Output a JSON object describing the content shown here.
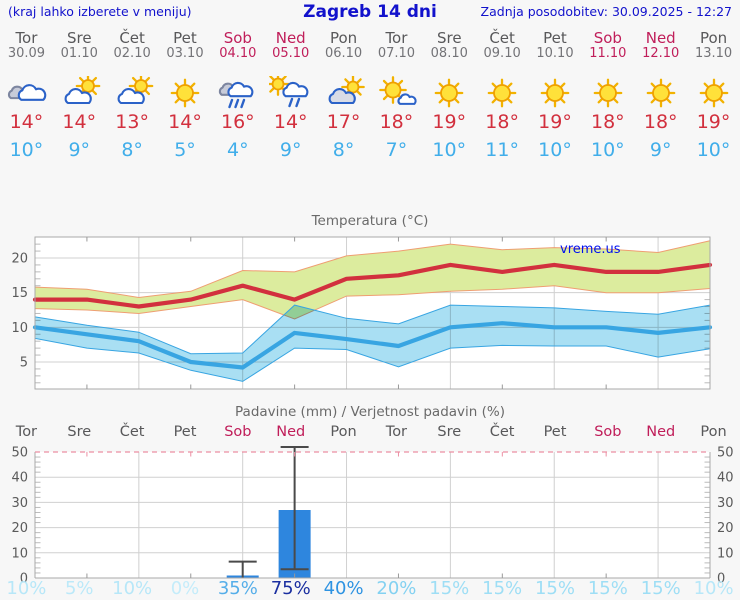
{
  "header": {
    "left": "(kraj lahko izberete v meniju)",
    "title": "Zagreb 14 dni",
    "updated": "Zadnja posodobitev: 30.09.2025 - 12:27"
  },
  "colors": {
    "page_bg": "#f7f7f7",
    "header_text": "#1212cc",
    "weekday": "#58585a",
    "date": "#737377",
    "weekend": "#c01e5a",
    "high_temp": "#d2303e",
    "low_temp": "#41aeea",
    "plot_bg": "#ffffff",
    "grid": "#d0d0d0",
    "axis": "#a9a9a9",
    "tick": "#999999",
    "minor_tick": "#bbbbbb",
    "axis_label": "#5a5a5a",
    "title": "#6a6a6a",
    "bar": "#2e86de",
    "whisker": "#4a4a4a",
    "limit_line": "#ec8fa3",
    "watermark": "#0010ee"
  },
  "days": [
    {
      "name": "Tor",
      "date": "30.09",
      "weekend": false,
      "icon": "cloudy",
      "high": "14°",
      "low": "10°",
      "prob": "10%",
      "prob_color": "#b7e7f8"
    },
    {
      "name": "Sre",
      "date": "01.10",
      "weekend": false,
      "icon": "partly-sunny",
      "high": "14°",
      "low": "9°",
      "prob": "5%",
      "prob_color": "#bce9f9"
    },
    {
      "name": "Čet",
      "date": "02.10",
      "weekend": false,
      "icon": "partly-sunny",
      "high": "13°",
      "low": "8°",
      "prob": "10%",
      "prob_color": "#b7e7f8"
    },
    {
      "name": "Pet",
      "date": "03.10",
      "weekend": false,
      "icon": "sunny",
      "high": "14°",
      "low": "5°",
      "prob": "0%",
      "prob_color": "#c4ecfa"
    },
    {
      "name": "Sob",
      "date": "04.10",
      "weekend": true,
      "icon": "rain",
      "high": "16°",
      "low": "4°",
      "prob": "35%",
      "prob_color": "#55aee9"
    },
    {
      "name": "Ned",
      "date": "05.10",
      "weekend": true,
      "icon": "sun-rain",
      "high": "14°",
      "low": "9°",
      "prob": "75%",
      "prob_color": "#1b2fa0"
    },
    {
      "name": "Pon",
      "date": "06.10",
      "weekend": false,
      "icon": "mostly-cloudy",
      "high": "17°",
      "low": "8°",
      "prob": "40%",
      "prob_color": "#2e93e2"
    },
    {
      "name": "Tor",
      "date": "07.10",
      "weekend": false,
      "icon": "sun-cloud",
      "high": "18°",
      "low": "7°",
      "prob": "20%",
      "prob_color": "#83d1f1"
    },
    {
      "name": "Sre",
      "date": "08.10",
      "weekend": false,
      "icon": "sunny",
      "high": "19°",
      "low": "10°",
      "prob": "15%",
      "prob_color": "#9edef5"
    },
    {
      "name": "Čet",
      "date": "09.10",
      "weekend": false,
      "icon": "sunny",
      "high": "18°",
      "low": "11°",
      "prob": "15%",
      "prob_color": "#9edef5"
    },
    {
      "name": "Pet",
      "date": "10.10",
      "weekend": false,
      "icon": "sunny",
      "high": "19°",
      "low": "10°",
      "prob": "15%",
      "prob_color": "#9edef5"
    },
    {
      "name": "Sob",
      "date": "11.10",
      "weekend": true,
      "icon": "sunny",
      "high": "18°",
      "low": "10°",
      "prob": "15%",
      "prob_color": "#9edef5"
    },
    {
      "name": "Ned",
      "date": "12.10",
      "weekend": true,
      "icon": "sunny",
      "high": "18°",
      "low": "9°",
      "prob": "15%",
      "prob_color": "#9edef5"
    },
    {
      "name": "Pon",
      "date": "13.10",
      "weekend": false,
      "icon": "sunny",
      "high": "19°",
      "low": "10°",
      "prob": "10%",
      "prob_color": "#b7e7f8"
    }
  ],
  "chart_data": [
    {
      "type": "line",
      "title": "Temperatura (°C)",
      "watermark": "vreme.us",
      "categories": [
        "Tor 30.09",
        "Sre 01.10",
        "Čet 02.10",
        "Pet 03.10",
        "Sob 04.10",
        "Ned 05.10",
        "Pon 06.10",
        "Tor 07.10",
        "Sre 08.10",
        "Čet 09.10",
        "Pet 10.10",
        "Sob 11.10",
        "Ned 12.10",
        "Pon 13.10"
      ],
      "ylim": [
        1,
        23
      ],
      "yticks": [
        5,
        10,
        15,
        20
      ],
      "grid": true,
      "series": [
        {
          "name": "max_temp",
          "color": "#d2303e",
          "values": [
            14,
            14,
            13,
            14,
            16,
            14,
            17,
            17.5,
            19,
            18,
            19,
            18,
            18,
            19
          ],
          "band": {
            "hi": [
              15.8,
              15.5,
              14.3,
              15.2,
              18.2,
              18.0,
              20.3,
              21.0,
              22.0,
              21.2,
              21.5,
              21.3,
              20.8,
              22.5
            ],
            "lo": [
              12.7,
              12.5,
              12.0,
              13.0,
              14.0,
              11.2,
              14.5,
              14.7,
              15.2,
              15.5,
              16.0,
              15.0,
              15.0,
              15.6
            ],
            "fill": "#dcec9e",
            "edge": "#ef9e72"
          }
        },
        {
          "name": "min_temp",
          "color": "#38a5e2",
          "values": [
            10,
            9,
            8,
            5,
            4.2,
            9.2,
            8.3,
            7.3,
            10,
            10.6,
            10,
            10,
            9.2,
            10
          ],
          "band": {
            "hi": [
              11.5,
              10.3,
              9.3,
              6.2,
              6.3,
              13.2,
              11.3,
              10.5,
              13.2,
              13.0,
              12.8,
              12.3,
              11.9,
              13.2
            ],
            "lo": [
              8.4,
              7.0,
              6.3,
              3.8,
              2.2,
              7.0,
              6.8,
              4.3,
              7.0,
              7.4,
              7.3,
              7.3,
              5.7,
              6.9
            ],
            "fill": "#a9dff3",
            "edge": "#38a5e2"
          },
          "blend": "multiply"
        }
      ]
    },
    {
      "type": "bar",
      "title": "Padavine (mm) / Verjetnost padavin (%)",
      "categories": [
        "Tor",
        "Sre",
        "Čet",
        "Pet",
        "Sob",
        "Ned",
        "Pon",
        "Tor",
        "Sre",
        "Čet",
        "Pet",
        "Sob",
        "Ned",
        "Pon"
      ],
      "values": [
        0,
        0,
        0,
        0,
        1,
        27,
        0,
        0,
        0,
        0,
        0,
        0,
        0,
        0
      ],
      "whiskers": [
        {
          "day": 4,
          "lo": 0,
          "hi": 6.5,
          "cap_lo": false
        },
        {
          "day": 5,
          "lo": 3.5,
          "hi": 52,
          "cap_lo": true
        }
      ],
      "probabilities": [
        "10%",
        "5%",
        "10%",
        "0%",
        "35%",
        "75%",
        "40%",
        "20%",
        "15%",
        "15%",
        "15%",
        "15%",
        "15%",
        "10%"
      ],
      "ylim": [
        0,
        52
      ],
      "yticks": [
        0,
        10,
        20,
        30,
        40,
        50
      ],
      "grid": true
    }
  ]
}
